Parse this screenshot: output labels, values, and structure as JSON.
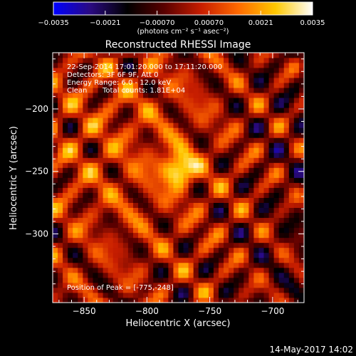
{
  "colorbar": {
    "colors": [
      "#0000ff",
      "#2a0a80",
      "#000000",
      "#5a0000",
      "#c81e00",
      "#ff6a00",
      "#ffc800",
      "#ffffff"
    ],
    "ticks": [
      "-0.0035",
      "-0.0021",
      "-0.00070",
      "0.00070",
      "0.0021",
      "0.0035"
    ],
    "unit": "(photons cm⁻² s⁻¹ asec⁻²)"
  },
  "chart_data": {
    "type": "heatmap",
    "title": "Reconstructed RHESSI Image",
    "xlabel": "Heliocentric X (arcsec)",
    "ylabel": "Heliocentric Y (arcsec)",
    "xlim": [
      -875,
      -675
    ],
    "ylim": [
      -355,
      -155
    ],
    "x_ticks": [
      -850,
      -800,
      -750,
      -700
    ],
    "y_ticks": [
      -200,
      -250,
      -300
    ],
    "x_tick_labels": [
      "-850",
      "-800",
      "-750",
      "-700"
    ],
    "y_tick_labels": [
      "-200",
      "-250",
      "-300"
    ],
    "peak": {
      "x": -775,
      "y": -248
    },
    "colorbar_range": [
      -0.0035,
      0.0035
    ],
    "grid": false
  },
  "annotations": {
    "time": "22-Sep-2014 17:01:20.000 to 17:11:20.000",
    "detectors": "Detectors: 3F 6F 9F, Att 0",
    "energy": "Energy Range: 6.0 - 12.0 keV",
    "clean": "Clean",
    "counts": "Total counts: 1.81E+04",
    "peak_text": "Position of Peak = [-775,-248]"
  },
  "footer_timestamp": "14-May-2017 14:02"
}
